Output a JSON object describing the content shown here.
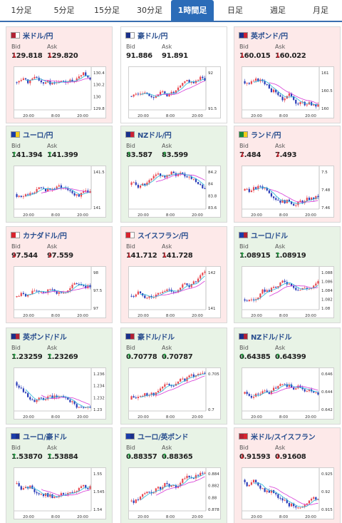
{
  "tabs": [
    {
      "label": "1分足",
      "active": false
    },
    {
      "label": "5分足",
      "active": false
    },
    {
      "label": "15分足",
      "active": false
    },
    {
      "label": "30分足",
      "active": false
    },
    {
      "label": "1時間足",
      "active": true
    },
    {
      "label": "日足",
      "active": false
    },
    {
      "label": "週足",
      "active": false
    },
    {
      "label": "月足",
      "active": false
    }
  ],
  "labels": {
    "bid": "Bid",
    "ask": "Ask"
  },
  "colors": {
    "up_arrow": "#1a9a3a",
    "down_arrow": "#d9232e",
    "up_candle": "#e8474f",
    "down_candle": "#2a3cb8",
    "ma_line": "#d63ad6",
    "ma_line2": "#28b8d8"
  },
  "x_labels": [
    "20:00",
    "8:00",
    "20:00"
  ],
  "pairs": [
    {
      "name": "米ドル/円",
      "dir": "down",
      "bid": "129.818",
      "ask": "129.820",
      "bid_dir": "down",
      "ask_dir": "down",
      "flag": [
        "#b22234",
        "#ffffff"
      ],
      "y_ticks": [
        "130.4",
        "130.2",
        "130",
        "129.8"
      ],
      "seed": 1,
      "trend": -0.6
    },
    {
      "name": "豪ドル/円",
      "dir": "neutral",
      "bid": "91.886",
      "ask": "91.891",
      "bid_dir": "none",
      "ask_dir": "none",
      "flag": [
        "#1a2f8a",
        "#ffffff"
      ],
      "y_ticks": [
        "92",
        "91.5"
      ],
      "seed": 2,
      "trend": 0.6
    },
    {
      "name": "英ポンド/円",
      "dir": "down",
      "bid": "160.015",
      "ask": "160.022",
      "bid_dir": "down",
      "ask_dir": "down",
      "flag": [
        "#1a2f8a",
        "#cc2233"
      ],
      "y_ticks": [
        "161",
        "160.5",
        "160"
      ],
      "seed": 3,
      "trend": -0.7
    },
    {
      "name": "ユーロ/円",
      "dir": "up",
      "bid": "141.394",
      "ask": "141.399",
      "bid_dir": "up",
      "ask_dir": "up",
      "flag": [
        "#1a3caa",
        "#f2cc1a"
      ],
      "y_ticks": [
        "141.5",
        "141"
      ],
      "seed": 4,
      "trend": 0.5
    },
    {
      "name": "NZドル/円",
      "dir": "up",
      "bid": "83.587",
      "ask": "83.599",
      "bid_dir": "up",
      "ask_dir": "up",
      "flag": [
        "#1a2f8a",
        "#cc2233"
      ],
      "y_ticks": [
        "84.2",
        "84",
        "83.8",
        "83.6"
      ],
      "seed": 5,
      "trend": -0.3
    },
    {
      "name": "ランド/円",
      "dir": "down",
      "bid": "7.484",
      "ask": "7.493",
      "bid_dir": "down",
      "ask_dir": "down",
      "flag": [
        "#1a8a3a",
        "#f2cc1a"
      ],
      "y_ticks": [
        "7.5",
        "7.48",
        "7.46"
      ],
      "seed": 6,
      "trend": 0.2
    },
    {
      "name": "カナダドル/円",
      "dir": "down",
      "bid": "97.544",
      "ask": "97.559",
      "bid_dir": "down",
      "ask_dir": "down",
      "flag": [
        "#d9232e",
        "#ffffff"
      ],
      "y_ticks": [
        "98",
        "97.5",
        "97"
      ],
      "seed": 7,
      "trend": 0.7
    },
    {
      "name": "スイスフラン/円",
      "dir": "down",
      "bid": "141.712",
      "ask": "141.728",
      "bid_dir": "down",
      "ask_dir": "down",
      "flag": [
        "#d9232e",
        "#ffffff"
      ],
      "y_ticks": [
        "142",
        "141"
      ],
      "seed": 8,
      "trend": 0.6
    },
    {
      "name": "ユーロ/ドル",
      "dir": "up",
      "bid": "1.08915",
      "ask": "1.08919",
      "bid_dir": "up",
      "ask_dir": "up",
      "flag": [
        "#1a3caa",
        "#b22234"
      ],
      "y_ticks": [
        "1.088",
        "1.086",
        "1.084",
        "1.082",
        "1.08"
      ],
      "seed": 9,
      "trend": 0.9
    },
    {
      "name": "英ポンド/ドル",
      "dir": "up",
      "bid": "1.23259",
      "ask": "1.23269",
      "bid_dir": "up",
      "ask_dir": "up",
      "flag": [
        "#1a2f8a",
        "#b22234"
      ],
      "y_ticks": [
        "1.236",
        "1.234",
        "1.232",
        "1.23"
      ],
      "seed": 10,
      "trend": -0.7
    },
    {
      "name": "豪ドル/ドル",
      "dir": "up",
      "bid": "0.70778",
      "ask": "0.70787",
      "bid_dir": "up",
      "ask_dir": "up",
      "flag": [
        "#1a2f8a",
        "#b22234"
      ],
      "y_ticks": [
        "0.705",
        "0.7"
      ],
      "seed": 11,
      "trend": 0.8
    },
    {
      "name": "NZドル/ドル",
      "dir": "up",
      "bid": "0.64385",
      "ask": "0.64399",
      "bid_dir": "up",
      "ask_dir": "up",
      "flag": [
        "#1a2f8a",
        "#b22234"
      ],
      "y_ticks": [
        "0.646",
        "0.644",
        "0.642"
      ],
      "seed": 12,
      "trend": 0.3
    },
    {
      "name": "ユーロ/豪ドル",
      "dir": "up",
      "bid": "1.53870",
      "ask": "1.53884",
      "bid_dir": "up",
      "ask_dir": "up",
      "flag": [
        "#1a3caa",
        "#1a2f8a"
      ],
      "y_ticks": [
        "1.55",
        "1.545",
        "1.54"
      ],
      "seed": 13,
      "trend": -0.6
    },
    {
      "name": "ユーロ/英ポンド",
      "dir": "up",
      "bid": "0.88357",
      "ask": "0.88365",
      "bid_dir": "up",
      "ask_dir": "up",
      "flag": [
        "#1a3caa",
        "#1a2f8a"
      ],
      "y_ticks": [
        "0.884",
        "0.882",
        "0.88",
        "0.878"
      ],
      "seed": 14,
      "trend": 0.9
    },
    {
      "name": "米ドル/スイスフラン",
      "dir": "down",
      "bid": "0.91593",
      "ask": "0.91608",
      "bid_dir": "down",
      "ask_dir": "down",
      "flag": [
        "#b22234",
        "#d9232e"
      ],
      "y_ticks": [
        "0.925",
        "0.92",
        "0.915"
      ],
      "seed": 15,
      "trend": -0.9
    }
  ]
}
